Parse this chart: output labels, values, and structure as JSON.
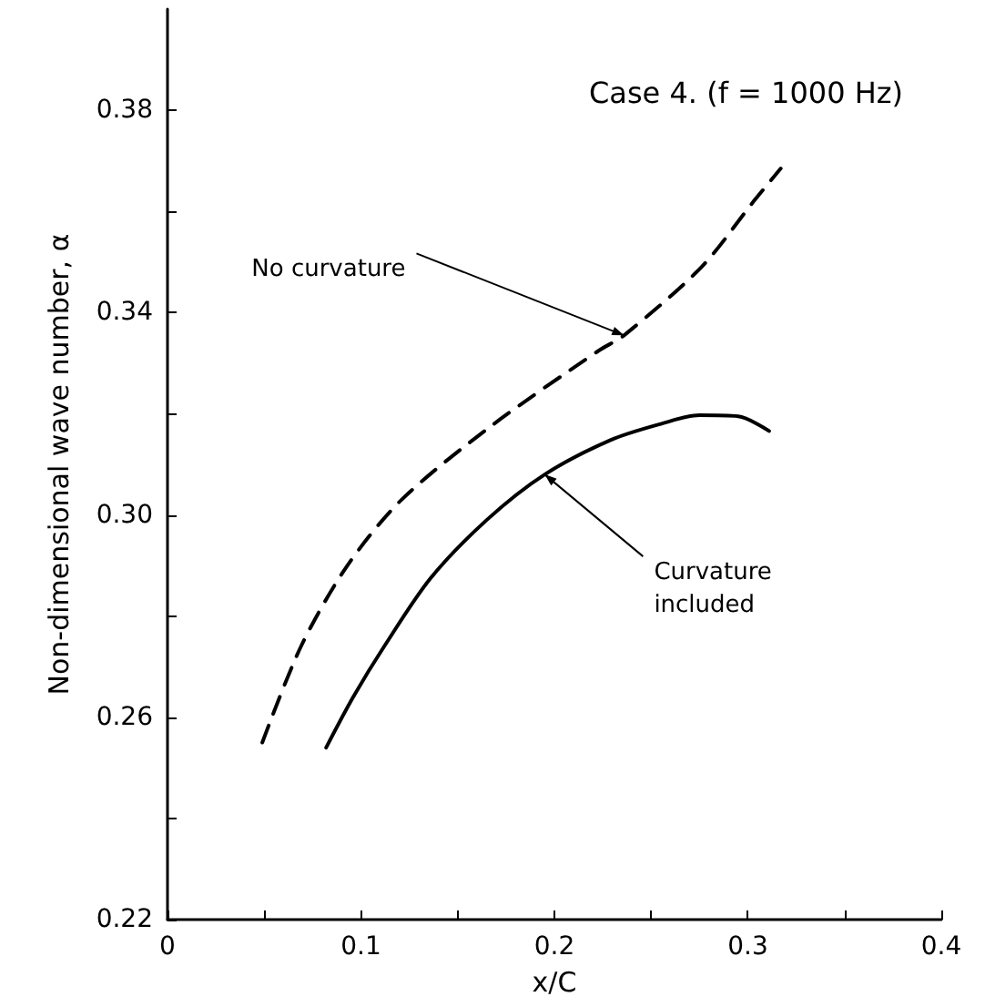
{
  "chart_data": {
    "type": "line",
    "title": "Case 4. (f = 1000 Hz)",
    "xlabel": "x/C",
    "ylabel": "Non-dimensional wave number, α",
    "xlim": [
      0,
      0.4
    ],
    "ylim": [
      0.22,
      0.4
    ],
    "xticks": [
      0,
      {
        "value": 0.05,
        "label": null
      },
      0.1,
      {
        "value": 0.15,
        "label": null
      },
      0.2,
      {
        "value": 0.25,
        "label": null
      },
      0.3,
      {
        "value": 0.35,
        "label": null
      },
      0.4
    ],
    "yticks": [
      0.22,
      {
        "value": 0.24,
        "label": null
      },
      0.26,
      {
        "value": 0.28,
        "label": null
      },
      {
        "value": 0.3,
        "label": "0.30"
      },
      {
        "value": 0.32,
        "label": null
      },
      0.34,
      {
        "value": 0.36,
        "label": null
      },
      0.38
    ],
    "grid": false,
    "marker": "none",
    "series": [
      {
        "color": "#000000",
        "line_style": "dashed",
        "x": [
          0.049,
          0.069,
          0.093,
          0.121,
          0.167,
          0.223,
          0.236,
          0.276,
          0.303,
          0.317
        ],
        "values": [
          0.255,
          0.274,
          0.29,
          0.303,
          0.3175,
          0.3325,
          0.3355,
          0.349,
          0.362,
          0.3685
        ]
      },
      {
        "color": "#000000",
        "line_style": "solid",
        "x": [
          0.082,
          0.096,
          0.112,
          0.136,
          0.165,
          0.195,
          0.229,
          0.255,
          0.275,
          0.295,
          0.311
        ],
        "values": [
          0.254,
          0.264,
          0.274,
          0.2875,
          0.299,
          0.308,
          0.3148,
          0.318,
          0.3197,
          0.3195,
          0.3166
        ]
      }
    ],
    "annotations": [
      {
        "text": "No curvature",
        "x": 0.236,
        "y": 0.3355
      },
      {
        "text": "Curvature\nincluded",
        "x": 0.195,
        "y": 0.308
      }
    ]
  }
}
